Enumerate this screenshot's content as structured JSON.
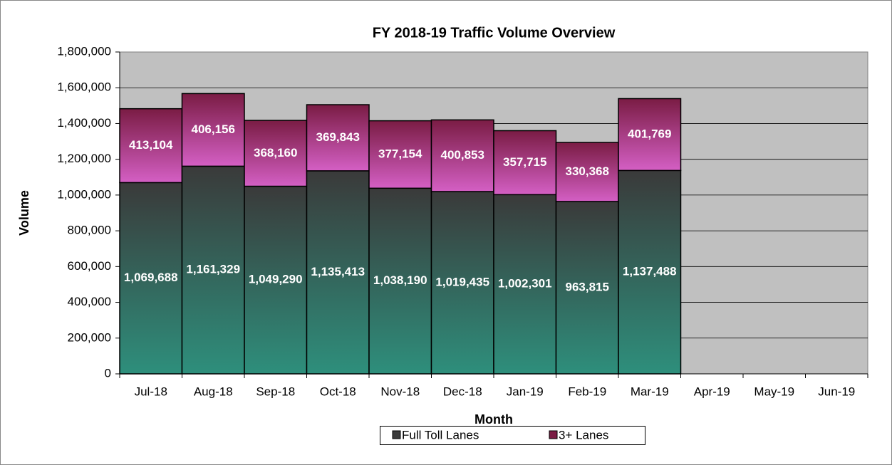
{
  "chart_data": {
    "type": "stacked_bar",
    "title": "FY 2018-19 Traffic Volume Overview",
    "x_label": "Month",
    "y_label": "Volume",
    "categories": [
      "Jul-18",
      "Aug-18",
      "Sep-18",
      "Oct-18",
      "Nov-18",
      "Dec-18",
      "Jan-19",
      "Feb-19",
      "Mar-19",
      "Apr-19",
      "May-19",
      "Jun-19"
    ],
    "series": [
      {
        "name": "Full Toll Lanes",
        "color": "#3a3a3a",
        "values": [
          1069688,
          1161329,
          1049290,
          1135413,
          1038190,
          1019435,
          1002301,
          963815,
          1137488,
          null,
          null,
          null
        ],
        "value_labels": [
          "1,069,688",
          "1,161,329",
          "1,049,290",
          "1,135,413",
          "1,038,190",
          "1,019,435",
          "1,002,301",
          "963,815",
          "1,137,488",
          null,
          null,
          null
        ]
      },
      {
        "name": "3+ Lanes",
        "color": "#7a1c44",
        "values": [
          413104,
          406156,
          368160,
          369843,
          377154,
          400853,
          357715,
          330368,
          401769,
          null,
          null,
          null
        ],
        "value_labels": [
          "413,104",
          "406,156",
          "368,160",
          "369,843",
          "377,154",
          "400,853",
          "357,715",
          "330,368",
          "401,769",
          null,
          null,
          null
        ]
      }
    ],
    "ylim": [
      0,
      1800000
    ],
    "yticks": [
      0,
      {
        "value": 200000,
        "label": "200,000"
      },
      {
        "value": 400000,
        "label": "400,000"
      },
      {
        "value": 600000,
        "label": "600,000"
      },
      {
        "value": 800000,
        "label": "800,000"
      },
      {
        "value": 1000000,
        "label": "1,000,000"
      },
      {
        "value": 1200000,
        "label": "1,200,000"
      },
      {
        "value": 1400000,
        "label": "1,400,000"
      },
      {
        "value": 1600000,
        "label": "1,600,000"
      },
      {
        "value": 1800000,
        "label": "1,800,000"
      }
    ],
    "grid": true,
    "legend": "bottom"
  }
}
